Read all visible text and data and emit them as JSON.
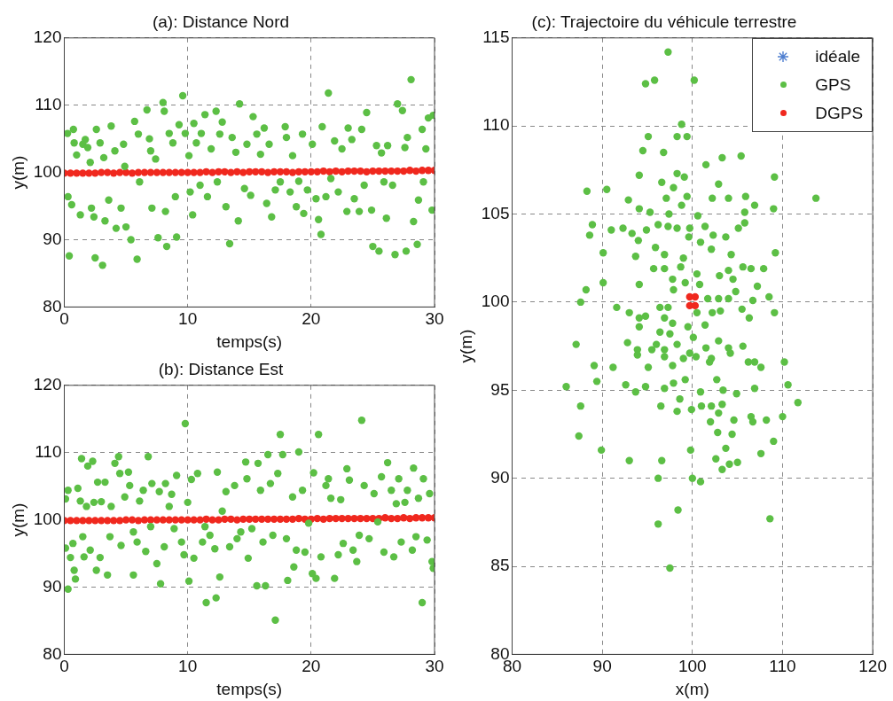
{
  "chart_data": [
    {
      "type": "scatter",
      "title": "(a): Distance Nord",
      "xlabel": "temps(s)",
      "ylabel": "y(m)",
      "xlim": [
        0,
        30
      ],
      "ylim": [
        80,
        120
      ],
      "xticks": [
        0,
        10,
        20,
        30
      ],
      "yticks": [
        80,
        90,
        100,
        110,
        120
      ],
      "grid": true,
      "marker": "circle",
      "legend": false,
      "series": [
        {
          "color": "#5cbf45",
          "x": [
            0.26,
            0.74,
            0.3,
            0.6,
            0.4,
            0.8,
            1.0,
            1.3,
            1.5,
            1.7,
            1.9,
            2.1,
            2.2,
            2.4,
            2.6,
            2.5,
            2.9,
            3.2,
            3.3,
            3.1,
            3.6,
            3.8,
            4.1,
            4.2,
            4.6,
            4.8,
            4.9,
            5.0,
            5.4,
            5.7,
            5.9,
            6.0,
            6.1,
            6.7,
            6.9,
            7.0,
            7.1,
            7.4,
            7.6,
            8.0,
            8.1,
            8.2,
            8.3,
            8.5,
            8.8,
            9.1,
            9.0,
            9.3,
            9.6,
            9.8,
            10.1,
            10.2,
            10.4,
            10.5,
            10.7,
            11.0,
            11.1,
            11.4,
            11.6,
            11.9,
            12.3,
            12.4,
            12.6,
            12.8,
            13.1,
            13.4,
            13.6,
            13.9,
            14.1,
            14.2,
            14.6,
            14.8,
            15.1,
            15.3,
            15.6,
            15.9,
            16.2,
            16.4,
            16.6,
            16.8,
            17.1,
            17.5,
            17.9,
            18.0,
            18.3,
            18.5,
            18.8,
            19.0,
            19.3,
            19.4,
            19.7,
            20.1,
            20.4,
            20.6,
            20.8,
            20.9,
            21.2,
            21.4,
            21.6,
            21.9,
            22.2,
            22.5,
            22.9,
            23.0,
            23.3,
            23.5,
            23.9,
            24.1,
            24.3,
            24.5,
            24.9,
            25.0,
            25.3,
            25.5,
            25.7,
            25.9,
            26.1,
            26.2,
            26.6,
            26.8,
            27.0,
            27.4,
            27.6,
            27.7,
            27.8,
            28.1,
            28.3,
            28.6,
            28.7,
            29.0,
            29.1,
            29.3,
            29.5,
            29.8,
            29.9
          ],
          "values": [
            105.8,
            106.4,
            96.4,
            95.2,
            87.6,
            104.4,
            102.6,
            93.7,
            104.2,
            104.9,
            103.7,
            101.5,
            94.7,
            93.4,
            106.4,
            87.3,
            104.4,
            102.2,
            92.8,
            86.2,
            95.9,
            106.9,
            103.2,
            91.7,
            94.7,
            104.2,
            100.9,
            91.9,
            90.0,
            107.6,
            87.1,
            105.7,
            98.6,
            109.3,
            105.0,
            103.2,
            94.7,
            102.0,
            90.3,
            110.4,
            109.1,
            94.2,
            89.0,
            105.8,
            104.4,
            90.4,
            96.4,
            107.1,
            111.4,
            105.8,
            102.5,
            97.1,
            93.7,
            107.3,
            104.4,
            98.1,
            105.8,
            108.6,
            96.4,
            103.5,
            109.1,
            98.6,
            105.7,
            107.5,
            94.9,
            89.4,
            105.2,
            103.0,
            92.8,
            110.2,
            97.6,
            104.2,
            96.6,
            108.3,
            105.7,
            102.7,
            106.6,
            95.4,
            104.2,
            93.4,
            97.4,
            98.6,
            106.8,
            105.2,
            97.1,
            102.5,
            94.9,
            98.7,
            105.7,
            93.9,
            97.4,
            104.2,
            96.1,
            93.0,
            90.8,
            106.8,
            96.4,
            111.8,
            99.1,
            104.7,
            97.1,
            103.5,
            94.2,
            106.6,
            104.9,
            96.1,
            94.2,
            106.4,
            98.1,
            108.9,
            94.4,
            89.0,
            104.0,
            88.3,
            102.9,
            98.6,
            93.2,
            104.0,
            98.1,
            87.8,
            110.2,
            109.2,
            103.7,
            88.3,
            105.2,
            113.8,
            92.7,
            89.3,
            95.9,
            106.4,
            98.6,
            103.5,
            108.1,
            94.4,
            108.5
          ]
        },
        {
          "color": "#f0281e",
          "x": [
            0,
            0.5,
            1,
            1.5,
            2,
            2.5,
            3,
            3.5,
            4,
            4.5,
            5,
            5.5,
            6,
            6.5,
            7,
            7.5,
            8,
            8.5,
            9,
            9.5,
            10,
            10.5,
            11,
            11.5,
            12,
            12.5,
            13,
            13.5,
            14,
            14.5,
            15,
            15.5,
            16,
            16.5,
            17,
            17.5,
            18,
            18.5,
            19,
            19.5,
            20,
            20.5,
            21,
            21.5,
            22,
            22.5,
            23,
            23.5,
            24,
            24.5,
            25,
            25.5,
            26,
            26.5,
            27,
            27.5,
            28,
            28.5,
            29,
            29.5,
            30
          ],
          "values": [
            99.9,
            99.9,
            99.9,
            99.9,
            99.9,
            99.9,
            100,
            100,
            99.9,
            100,
            100,
            99.9,
            100,
            100,
            100,
            100,
            100,
            100,
            100,
            100,
            100,
            100,
            100,
            100.1,
            100,
            100.1,
            100.1,
            100,
            100.1,
            100,
            100.1,
            100.1,
            100.1,
            100,
            100.1,
            100.1,
            100.1,
            100,
            100.1,
            100.1,
            100.1,
            100.1,
            100.2,
            100.1,
            100.2,
            100.1,
            100.2,
            100.2,
            100.2,
            100.1,
            100.2,
            100.2,
            100.2,
            100.2,
            100.2,
            100.2,
            100.3,
            100.2,
            100.3,
            100.3,
            100.3
          ]
        }
      ]
    },
    {
      "type": "scatter",
      "title": "(b): Distance Est",
      "xlabel": "temps(s)",
      "ylabel": "y(m)",
      "xlim": [
        0,
        30
      ],
      "ylim": [
        80,
        120
      ],
      "xticks": [
        0,
        10,
        20,
        30
      ],
      "yticks": [
        80,
        90,
        100,
        110,
        120
      ],
      "grid": true,
      "marker": "circle",
      "legend": false,
      "series": [
        {
          "color": "#5cbf45",
          "x": [
            0.1,
            0.3,
            0.1,
            0.3,
            0.5,
            0.7,
            0.8,
            0.9,
            1.1,
            1.3,
            1.4,
            1.5,
            1.6,
            1.8,
            1.9,
            2.1,
            2.3,
            2.4,
            2.6,
            2.7,
            2.9,
            3.0,
            3.3,
            3.5,
            3.7,
            3.8,
            4.1,
            4.4,
            4.5,
            4.6,
            4.9,
            5.2,
            5.3,
            5.6,
            5.6,
            5.9,
            6.1,
            6.4,
            6.6,
            6.8,
            7.0,
            7.1,
            7.5,
            7.7,
            7.8,
            8.1,
            8.2,
            8.5,
            8.7,
            8.9,
            9.1,
            9.5,
            9.7,
            9.8,
            10.0,
            10.1,
            10.3,
            10.5,
            10.8,
            11.2,
            11.4,
            11.5,
            11.8,
            12.2,
            12.3,
            12.4,
            12.6,
            12.8,
            13.1,
            13.4,
            13.8,
            14.0,
            14.3,
            14.7,
            14.8,
            14.9,
            15.2,
            15.6,
            15.7,
            15.9,
            16.1,
            16.3,
            16.5,
            16.7,
            16.9,
            17.1,
            17.3,
            17.5,
            17.7,
            18.0,
            18.1,
            18.5,
            18.6,
            18.8,
            19.0,
            19.3,
            19.5,
            19.8,
            20.1,
            20.2,
            20.4,
            20.6,
            20.8,
            21.2,
            21.4,
            21.6,
            21.9,
            22.2,
            22.4,
            22.6,
            22.9,
            23.1,
            23.4,
            23.7,
            23.9,
            24.1,
            24.3,
            24.7,
            25.1,
            25.4,
            25.7,
            25.9,
            26.2,
            26.5,
            26.7,
            26.9,
            27.1,
            27.3,
            27.6,
            27.8,
            28.2,
            28.3,
            28.5,
            28.7,
            29.0,
            29.1,
            29.4,
            29.6,
            29.8,
            29.9
          ],
          "values": [
            103.1,
            104.4,
            95.8,
            89.7,
            94.4,
            96.5,
            92.5,
            91.2,
            104.7,
            102.8,
            109.1,
            97.5,
            94.5,
            102.0,
            108.0,
            95.5,
            108.7,
            102.6,
            92.5,
            105.6,
            94.4,
            102.7,
            105.6,
            91.8,
            97.5,
            102.0,
            108.4,
            109.4,
            106.9,
            96.2,
            103.4,
            107.1,
            105.1,
            91.8,
            98.2,
            96.7,
            102.8,
            104.4,
            95.3,
            109.4,
            99.0,
            105.4,
            93.5,
            104.2,
            90.5,
            96.0,
            105.4,
            102.0,
            103.8,
            98.7,
            106.6,
            96.7,
            94.8,
            114.3,
            102.6,
            90.9,
            106.0,
            94.3,
            106.9,
            96.7,
            99.0,
            87.7,
            97.7,
            95.7,
            88.4,
            107.1,
            91.5,
            101.3,
            104.2,
            96.0,
            105.1,
            97.2,
            98.2,
            108.6,
            106.1,
            94.3,
            98.7,
            90.2,
            108.4,
            104.4,
            96.7,
            90.2,
            109.7,
            105.4,
            97.7,
            85.1,
            106.9,
            112.7,
            109.7,
            97.2,
            91.0,
            103.4,
            93.0,
            95.5,
            110.1,
            104.4,
            95.2,
            99.5,
            92.0,
            107.0,
            91.3,
            112.7,
            94.5,
            105.1,
            106.1,
            103.2,
            91.3,
            94.8,
            103.0,
            96.5,
            107.6,
            105.9,
            95.5,
            93.8,
            97.7,
            114.8,
            105.1,
            97.2,
            103.9,
            99.7,
            106.4,
            95.2,
            108.5,
            104.4,
            94.5,
            102.4,
            106.1,
            96.7,
            102.6,
            104.4,
            95.5,
            107.7,
            97.5,
            103.2,
            87.7,
            106.1,
            97.0,
            103.9,
            93.8,
            92.8
          ]
        },
        {
          "color": "#f0281e",
          "x": [
            0,
            0.5,
            1,
            1.5,
            2,
            2.5,
            3,
            3.5,
            4,
            4.5,
            5,
            5.5,
            6,
            6.5,
            7,
            7.5,
            8,
            8.5,
            9,
            9.5,
            10,
            10.5,
            11,
            11.5,
            12,
            12.5,
            13,
            13.5,
            14,
            14.5,
            15,
            15.5,
            16,
            16.5,
            17,
            17.5,
            18,
            18.5,
            19,
            19.5,
            20,
            20.5,
            21,
            21.5,
            22,
            22.5,
            23,
            23.5,
            24,
            24.5,
            25,
            25.5,
            26,
            26.5,
            27,
            27.5,
            28,
            28.5,
            29,
            29.5,
            30
          ],
          "values": [
            99.9,
            99.9,
            99.9,
            99.9,
            99.9,
            99.9,
            99.9,
            99.9,
            99.9,
            99.9,
            100,
            100,
            99.9,
            100,
            100,
            100,
            100,
            100,
            100,
            100,
            100,
            100,
            100,
            100.1,
            100,
            100,
            100.1,
            100.1,
            100,
            100.1,
            100.1,
            100.1,
            100.1,
            100.1,
            100.1,
            100.1,
            100.1,
            100.1,
            100.2,
            100.1,
            100.1,
            100.2,
            100.1,
            100.2,
            100.2,
            100.2,
            100.2,
            100.2,
            100.2,
            100.2,
            100.2,
            100.2,
            100.3,
            100.2,
            100.2,
            100.3,
            100.2,
            100.3,
            100.3,
            100.3,
            100.3
          ]
        }
      ]
    },
    {
      "type": "scatter",
      "title": "(c): Trajectoire du véhicule terrestre",
      "xlabel": "x(m)",
      "ylabel": "y(m)",
      "xlim": [
        80,
        120
      ],
      "ylim": [
        80,
        115
      ],
      "xticks": [
        80,
        90,
        100,
        110,
        120
      ],
      "yticks": [
        80,
        85,
        90,
        95,
        100,
        105,
        110,
        115
      ],
      "grid": true,
      "marker": "circle",
      "legend": "top right",
      "series": [
        {
          "name": "idéale",
          "color": "#4f7fd0",
          "marker": "star"
        },
        {
          "name": "GPS",
          "color": "#5cbf45",
          "x": [
            97.3,
            94.8,
            95.8,
            100.2,
            98.8,
            95.1,
            98.3,
            99.4,
            94.5,
            96.8,
            103.3,
            105.4,
            101.5,
            94.1,
            98.3,
            99.1,
            102.9,
            109.1,
            96.6,
            97.9,
            88.3,
            90.5,
            92.9,
            97.1,
            99.4,
            102.2,
            104.0,
            105.9,
            106.9,
            109.0,
            113.7,
            98.8,
            94.1,
            95.3,
            97.4,
            100.6,
            105.8,
            88.9,
            88.6,
            91.0,
            92.3,
            93.3,
            94.9,
            96.2,
            97.3,
            98.3,
            99.7,
            101.4,
            102.3,
            103.7,
            105.1,
            105.8,
            99.6,
            100.9,
            94.0,
            93.7,
            95.9,
            96.9,
            99.0,
            102.1,
            104.3,
            109.2,
            90.1,
            95.7,
            96.9,
            98.7,
            100.5,
            103.0,
            104.0,
            105.6,
            106.5,
            107.9,
            97.8,
            99.2,
            100.8,
            104.5,
            107.2,
            90.1,
            94.1,
            104.8,
            97.9,
            88.2,
            87.6,
            91.6,
            93.0,
            94.1,
            94.8,
            96.4,
            97.3,
            101.7,
            102.9,
            104.0,
            106.7,
            108.5,
            109.1,
            100.5,
            102.2,
            103.1,
            105.5,
            106.3,
            96.9,
            97.8,
            101.4,
            94.1,
            96.4,
            97.5,
            99.5,
            87.1,
            92.8,
            93.9,
            96.0,
            96.9,
            98.3,
            100.1,
            101.5,
            102.9,
            104.0,
            105.6,
            89.1,
            91.2,
            95.1,
            99.0,
            100.4,
            102.1,
            106.2,
            107.6,
            110.2,
            93.9,
            95.5,
            96.9,
            97.8,
            99.7,
            101.9,
            104.2,
            106.9,
            86.0,
            89.4,
            92.6,
            93.7,
            94.8,
            96.9,
            97.9,
            99.2,
            100.9,
            102.7,
            103.4,
            104.9,
            106.9,
            110.6,
            111.7,
            87.6,
            96.5,
            98.3,
            98.6,
            99.9,
            101.0,
            102.1,
            103.3,
            102.0,
            102.9,
            104.6,
            106.5,
            106.7,
            108.2,
            110.0,
            87.4,
            102.8,
            104.4,
            109.0,
            89.9,
            99.8,
            103.7,
            93.0,
            96.6,
            102.6,
            107.6,
            105.0,
            104.1,
            103.3,
            96.2,
            100.0,
            100.9,
            98.4,
            96.2,
            108.6,
            97.5
          ],
          "values": [
            114.2,
            112.4,
            112.6,
            112.6,
            110.1,
            109.4,
            109.4,
            109.4,
            108.6,
            108.5,
            108.2,
            108.3,
            107.8,
            107.2,
            107.3,
            107.1,
            106.7,
            107.1,
            106.8,
            106.5,
            106.3,
            106.4,
            105.8,
            105.9,
            106.0,
            105.9,
            105.9,
            106.0,
            105.5,
            105.3,
            105.9,
            105.5,
            105.3,
            105.1,
            105.0,
            104.9,
            105.1,
            104.4,
            103.8,
            104.1,
            104.2,
            103.9,
            104.1,
            104.4,
            104.3,
            104.2,
            104.2,
            104.3,
            103.8,
            103.7,
            104.2,
            104.5,
            103.7,
            103.4,
            103.5,
            102.6,
            103.1,
            102.7,
            102.5,
            103.0,
            102.7,
            102.8,
            102.8,
            101.9,
            101.9,
            102.0,
            101.6,
            101.5,
            101.8,
            102.0,
            101.9,
            101.9,
            101.3,
            101.1,
            101.0,
            101.3,
            100.9,
            101.1,
            101.0,
            100.6,
            100.7,
            100.7,
            100.0,
            99.7,
            99.4,
            99.1,
            99.2,
            99.7,
            99.7,
            100.2,
            100.2,
            100.2,
            100.1,
            100.3,
            99.4,
            99.4,
            99.4,
            99.5,
            99.6,
            99.1,
            99.1,
            98.8,
            98.7,
            98.6,
            98.3,
            98.2,
            98.6,
            97.6,
            97.7,
            97.3,
            97.6,
            97.3,
            97.6,
            98.0,
            97.4,
            97.8,
            97.4,
            97.5,
            96.4,
            96.3,
            96.3,
            96.8,
            96.9,
            96.8,
            96.6,
            96.3,
            96.6,
            97.0,
            97.3,
            96.9,
            96.4,
            97.1,
            96.6,
            97.1,
            96.6,
            95.2,
            95.5,
            95.3,
            94.9,
            95.2,
            95.1,
            95.4,
            95.6,
            94.9,
            95.6,
            95.0,
            94.8,
            95.1,
            95.3,
            94.3,
            94.1,
            94.1,
            93.8,
            94.5,
            93.9,
            94.1,
            94.1,
            94.2,
            93.2,
            93.7,
            93.3,
            93.5,
            93.2,
            93.3,
            93.5,
            92.4,
            92.6,
            92.5,
            92.1,
            91.6,
            91.6,
            91.7,
            91.0,
            91.0,
            91.1,
            91.4,
            90.9,
            90.8,
            90.5,
            90.0,
            90.0,
            89.8,
            88.2,
            87.4,
            87.7,
            84.9
          ]
        },
        {
          "name": "DGPS",
          "color": "#f0281e",
          "x": [
            99.7,
            100.3,
            99.7,
            100.3
          ],
          "values": [
            100.3,
            100.3,
            99.8,
            99.8
          ]
        }
      ]
    }
  ]
}
